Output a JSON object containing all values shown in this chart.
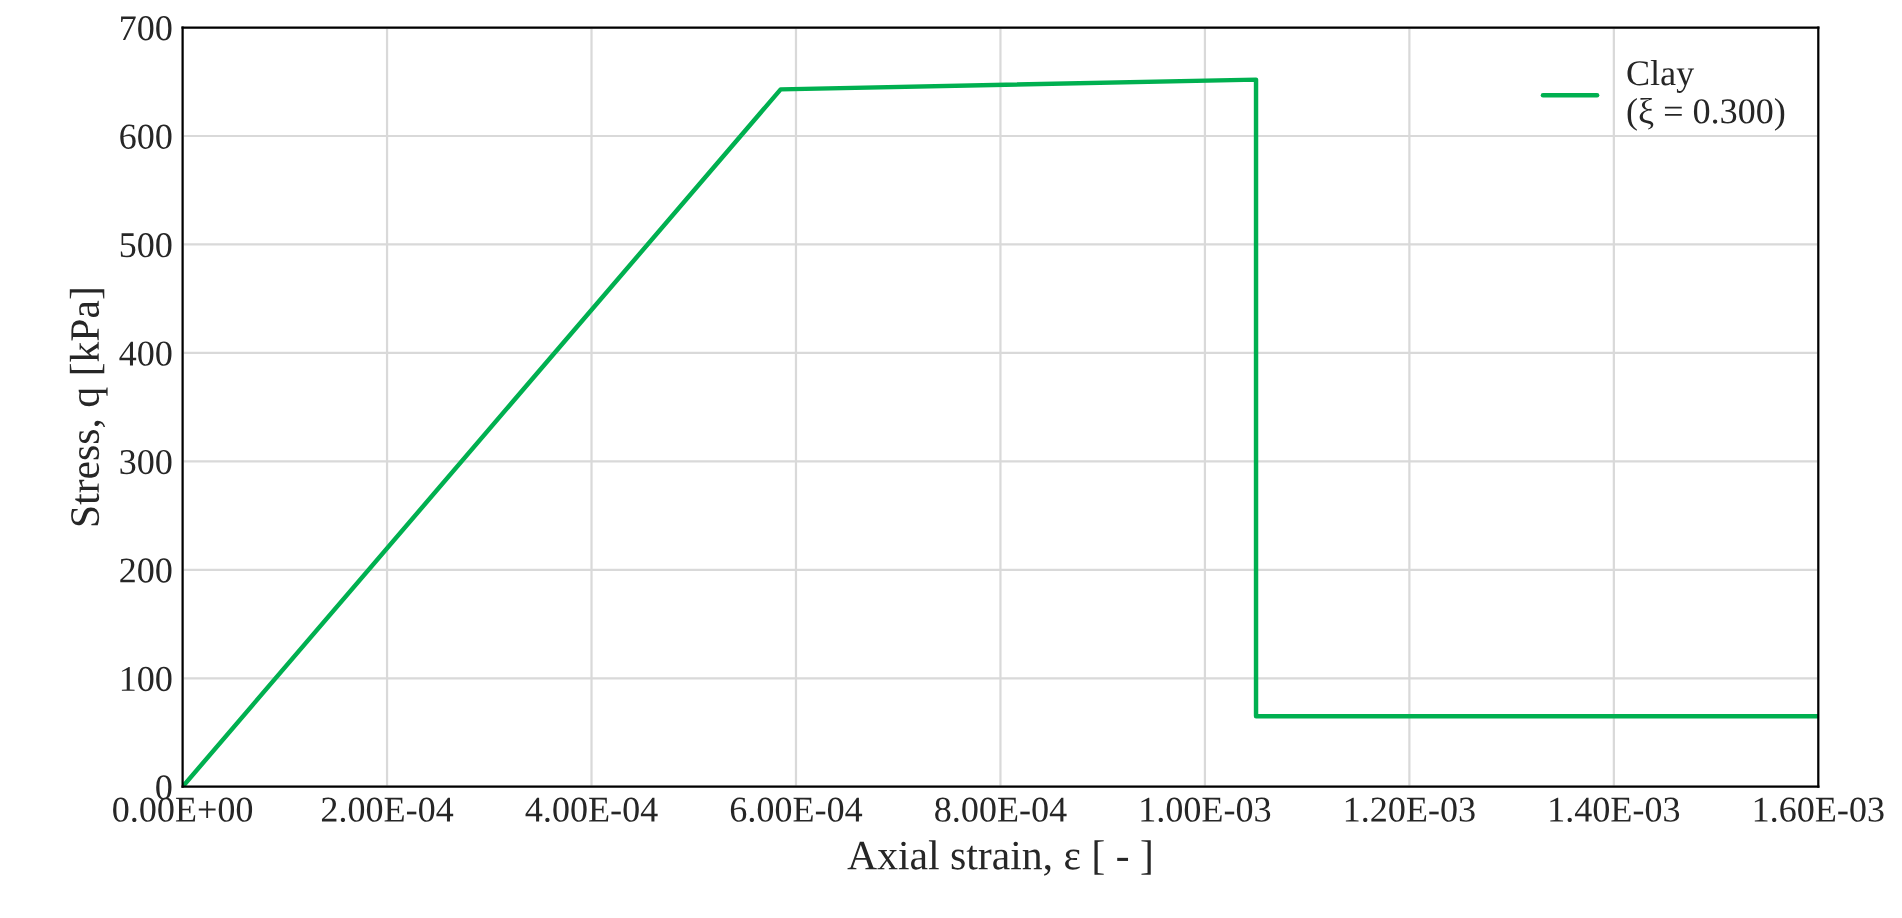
{
  "chart_data": {
    "type": "line",
    "xlabel": "Axial strain, ε [ - ]",
    "ylabel": "Stress, q [kPa]",
    "series": [
      {
        "name": "Clay\n(ξ = 0.300)",
        "color": "#00b050",
        "x": [
          0,
          0.000585,
          0.00105,
          0.00105,
          0.0016
        ],
        "values": [
          0,
          643,
          652,
          65,
          65
        ]
      }
    ],
    "xlim": [
      0,
      0.0016
    ],
    "xticks": [
      {
        "value": 0,
        "label": "0.00E+00"
      },
      {
        "value": 0.0002,
        "label": "2.00E-04"
      },
      {
        "value": 0.0004,
        "label": "4.00E-04"
      },
      {
        "value": 0.0006,
        "label": "6.00E-04"
      },
      {
        "value": 0.0008,
        "label": "8.00E-04"
      },
      {
        "value": 0.001,
        "label": "1.00E-03"
      },
      {
        "value": 0.0012,
        "label": "1.20E-03"
      },
      {
        "value": 0.0014,
        "label": "1.40E-03"
      },
      {
        "value": 0.0016,
        "label": "1.60E-03"
      }
    ],
    "ylim": [
      0,
      700
    ],
    "yticks": [
      0,
      100,
      200,
      300,
      400,
      500,
      600,
      700
    ],
    "grid": true,
    "legend": "top right",
    "marker": "none",
    "line_style": "solid"
  }
}
